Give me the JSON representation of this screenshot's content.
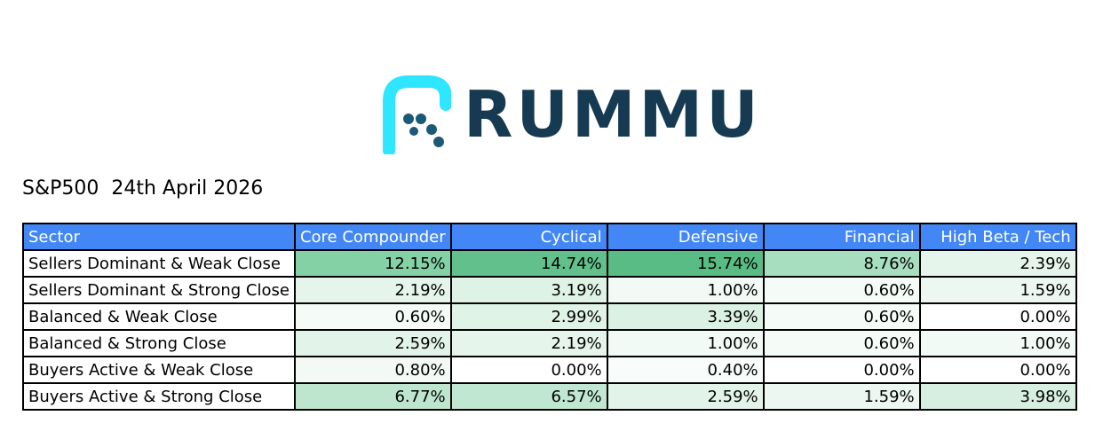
{
  "brand": {
    "name": "RUMMU",
    "logo_color": "#163a52",
    "accent_color": "#2ee6ff"
  },
  "subtitle": "S&P500  24th April 2026",
  "table": {
    "header_color": "#4287f5",
    "columns": [
      "Sector",
      "Core Compounder",
      "Cyclical",
      "Defensive",
      "Financial",
      "High Beta / Tech"
    ],
    "rows": [
      {
        "label": "Sellers Dominant & Weak Close",
        "values": [
          "12.15%",
          "14.74%",
          "15.74%",
          "8.76%",
          "2.39%"
        ],
        "colors": [
          "#85d1a6",
          "#61c08b",
          "#58bc84",
          "#a8dec0",
          "#e6f5ec"
        ]
      },
      {
        "label": "Sellers Dominant & Strong Close",
        "values": [
          "2.19%",
          "3.19%",
          "1.00%",
          "0.60%",
          "1.59%"
        ],
        "colors": [
          "#e5f5eb",
          "#def2e6",
          "#f1faf4",
          "#f5fbf7",
          "#ebf7f0"
        ]
      },
      {
        "label": "Balanced & Weak Close",
        "values": [
          "0.60%",
          "2.99%",
          "3.39%",
          "0.60%",
          "0.00%"
        ],
        "colors": [
          "#f5fbf7",
          "#dff3e7",
          "#dbf1e4",
          "#f5fbf7",
          "#ffffff"
        ]
      },
      {
        "label": "Balanced & Strong Close",
        "values": [
          "2.59%",
          "2.19%",
          "1.00%",
          "0.60%",
          "1.00%"
        ],
        "colors": [
          "#e2f4e9",
          "#e5f5eb",
          "#f1faf4",
          "#f5fbf7",
          "#f1faf4"
        ]
      },
      {
        "label": "Buyers Active & Weak Close",
        "values": [
          "0.80%",
          "0.00%",
          "0.40%",
          "0.00%",
          "0.00%"
        ],
        "colors": [
          "#f3faf6",
          "#ffffff",
          "#f8fcfa",
          "#ffffff",
          "#ffffff"
        ]
      },
      {
        "label": "Buyers Active & Strong Close",
        "values": [
          "6.77%",
          "6.57%",
          "2.59%",
          "1.59%",
          "3.98%"
        ],
        "colors": [
          "#bee6cf",
          "#c0e7d1",
          "#e2f4e9",
          "#ebf7f0",
          "#d6efe0"
        ]
      }
    ]
  }
}
